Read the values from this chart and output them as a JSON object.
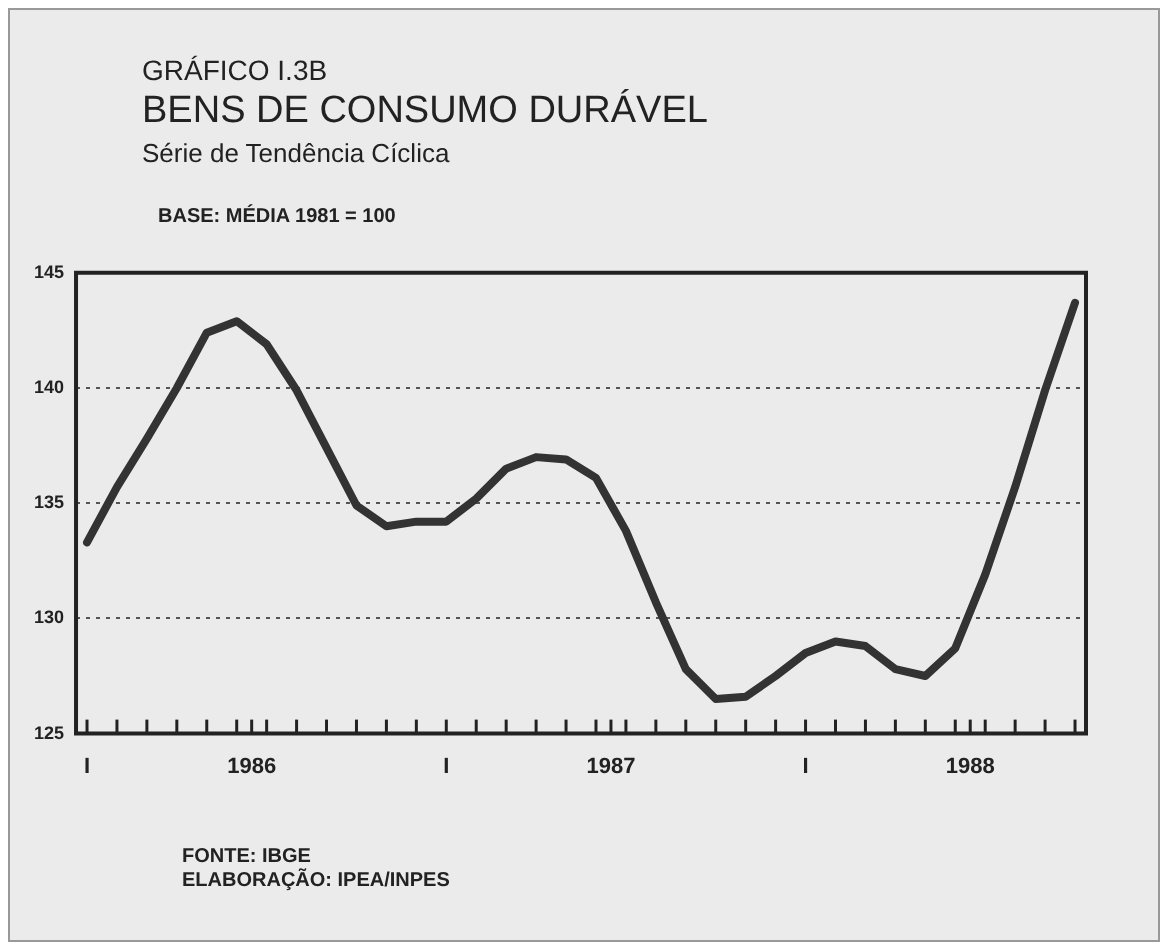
{
  "chart_data": {
    "type": "line",
    "title": "BENS DE CONSUMO DURÁVEL",
    "subtitle": "Série de Tendência Cíclica",
    "ylabel": "BASE: MÉDIA 1981 = 100",
    "annotations": [
      "GRÁFICO I.3B",
      "FONTE: IBGE",
      "ELABORAÇÃO: IPEA/INPES"
    ],
    "x": [
      "1986-01",
      "1986-02",
      "1986-03",
      "1986-04",
      "1986-05",
      "1986-06",
      "1986-07",
      "1986-08",
      "1986-09",
      "1986-10",
      "1986-11",
      "1986-12",
      "1987-01",
      "1987-02",
      "1987-03",
      "1987-04",
      "1987-05",
      "1987-06",
      "1987-07",
      "1987-08",
      "1987-09",
      "1987-10",
      "1987-11",
      "1987-12",
      "1988-01",
      "1988-02",
      "1988-03",
      "1988-04",
      "1988-05",
      "1988-06",
      "1988-07",
      "1988-08",
      "1988-09",
      "1988-10"
    ],
    "series": [
      {
        "color": "#333333",
        "values": [
          133.3,
          135.7,
          137.8,
          140.0,
          142.4,
          142.9,
          141.9,
          139.9,
          137.4,
          134.9,
          134.0,
          134.2,
          134.2,
          135.2,
          136.5,
          137.0,
          136.9,
          136.1,
          133.8,
          130.7,
          127.8,
          126.5,
          126.6,
          127.5,
          128.5,
          129.0,
          128.8,
          127.8,
          127.5,
          128.7,
          131.9,
          135.7,
          139.9,
          143.7
        ]
      }
    ],
    "xlim": [
      "1985-12-20",
      "1988-10-12"
    ],
    "xticks": [
      {
        "value": "1986-01",
        "label": "I"
      },
      {
        "value": "1986-02",
        "label": null
      },
      {
        "value": "1986-03",
        "label": null
      },
      {
        "value": "1986-04",
        "label": null
      },
      {
        "value": "1986-05",
        "label": null
      },
      {
        "value": "1986-06",
        "label": null
      },
      {
        "value": "1986-06-16",
        "label": "1986"
      },
      {
        "value": "1986-07",
        "label": null
      },
      {
        "value": "1986-08",
        "label": null
      },
      {
        "value": "1986-09",
        "label": null
      },
      {
        "value": "1986-10",
        "label": null
      },
      {
        "value": "1986-11",
        "label": null
      },
      {
        "value": "1986-12",
        "label": null
      },
      {
        "value": "1987-01",
        "label": "I"
      },
      {
        "value": "1987-02",
        "label": null
      },
      {
        "value": "1987-03",
        "label": null
      },
      {
        "value": "1987-04",
        "label": null
      },
      {
        "value": "1987-05",
        "label": null
      },
      {
        "value": "1987-06",
        "label": null
      },
      {
        "value": "1987-06-16",
        "label": "1987"
      },
      {
        "value": "1987-07",
        "label": null
      },
      {
        "value": "1987-08",
        "label": null
      },
      {
        "value": "1987-09",
        "label": null
      },
      {
        "value": "1987-10",
        "label": null
      },
      {
        "value": "1987-11",
        "label": null
      },
      {
        "value": "1987-12",
        "label": null
      },
      {
        "value": "1988-01",
        "label": "I"
      },
      {
        "value": "1988-02",
        "label": null
      },
      {
        "value": "1988-03",
        "label": null
      },
      {
        "value": "1988-04",
        "label": null
      },
      {
        "value": "1988-05",
        "label": null
      },
      {
        "value": "1988-06",
        "label": null
      },
      {
        "value": "1988-06-16",
        "label": "1988"
      },
      {
        "value": "1988-07",
        "label": null
      },
      {
        "value": "1988-08",
        "label": null
      },
      {
        "value": "1988-09",
        "label": null
      },
      {
        "value": "1988-10",
        "label": null
      }
    ],
    "ylim": [
      125,
      145
    ],
    "yticks": [
      125,
      130,
      135,
      140,
      145
    ],
    "grid": "y",
    "legend": false,
    "marker": "none",
    "line_style": "solid"
  }
}
